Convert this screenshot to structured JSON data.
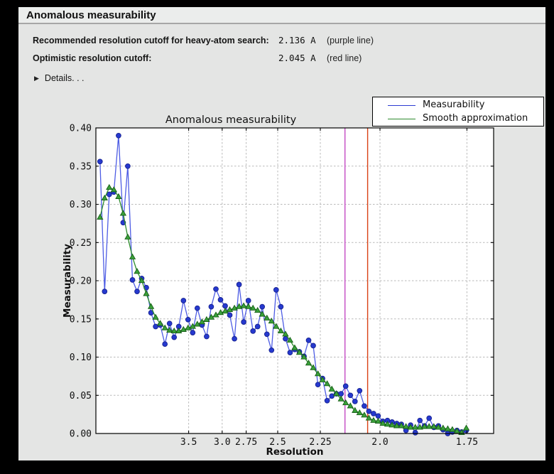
{
  "window": {
    "title": "Anomalous measurability"
  },
  "info_rows": [
    {
      "label": "Recommended resolution cutoff for heavy-atom search:",
      "value": "2.136 A",
      "note": "(purple line)"
    },
    {
      "label": "Optimistic resolution cutoff:",
      "value": "2.045 A",
      "note": "(red line)"
    }
  ],
  "details": {
    "icon": "▶",
    "label": "Details. . ."
  },
  "chart_data": {
    "type": "line",
    "title": "Anomalous measurability",
    "xlabel": "Resolution",
    "ylabel": "Measurability",
    "grid": true,
    "x_axis": {
      "scale": "1_over_d_squared",
      "range_s": [
        0,
        0.35
      ],
      "tick_d_values": [
        3.5,
        3.0,
        2.75,
        2.5,
        2.25,
        2.0,
        1.75
      ],
      "tick_labels": [
        "3.5",
        "3.0",
        "2.75",
        "2.5",
        "2.25",
        "2.0",
        "1.75"
      ]
    },
    "y_axis": {
      "range": [
        0,
        0.4
      ],
      "ticks": [
        0,
        0.05,
        0.1,
        0.15,
        0.2,
        0.25,
        0.3,
        0.35,
        0.4
      ],
      "tick_labels": [
        "0.00",
        "0.05",
        "0.10",
        "0.15",
        "0.20",
        "0.25",
        "0.30",
        "0.35",
        "0.40"
      ]
    },
    "x_bins": {
      "s_start": 0.0036,
      "s_step": 0.00408,
      "count": 80
    },
    "vlines": [
      {
        "name": "recommended-cutoff-line",
        "d": 2.136,
        "color": "#c44bc4",
        "meaning": "purple line"
      },
      {
        "name": "optimistic-cutoff-line",
        "d": 2.045,
        "color": "#d94015",
        "meaning": "red line"
      }
    ],
    "grid_color": "#b9b9b9",
    "legend": {
      "position": "upper right",
      "entries": [
        {
          "label": "Measurability",
          "color": "#2d3bd2"
        },
        {
          "label": "Smooth approximation",
          "color": "#2e8b2e"
        }
      ]
    },
    "series": [
      {
        "name": "Measurability",
        "marker": "circle",
        "line_color": "#4d5ce4",
        "marker_color": "#2639cf",
        "marker_edge": "#17228f",
        "values": [
          0.356,
          0.186,
          0.313,
          0.316,
          0.39,
          0.276,
          0.35,
          0.201,
          0.186,
          0.203,
          0.191,
          0.158,
          0.14,
          0.142,
          0.117,
          0.144,
          0.126,
          0.14,
          0.174,
          0.149,
          0.132,
          0.164,
          0.142,
          0.127,
          0.166,
          0.189,
          0.175,
          0.167,
          0.155,
          0.124,
          0.195,
          0.146,
          0.174,
          0.134,
          0.14,
          0.166,
          0.13,
          0.109,
          0.188,
          0.166,
          0.124,
          0.106,
          0.11,
          0.107,
          0.101,
          0.122,
          0.115,
          0.064,
          0.072,
          0.043,
          0.049,
          0.052,
          0.052,
          0.062,
          0.05,
          0.042,
          0.056,
          0.036,
          0.029,
          0.026,
          0.023,
          0.016,
          0.017,
          0.015,
          0.013,
          0.012,
          0.004,
          0.011,
          0.001,
          0.017,
          0.01,
          0.02,
          0.008,
          0.01,
          0.005,
          0.0,
          0.002,
          0.004,
          0.002,
          0.004
        ]
      },
      {
        "name": "Smooth approximation",
        "marker": "triangle",
        "line_color": "#2c8c2c",
        "marker_color": "#3aa13a",
        "marker_edge": "#175e17",
        "values": [
          0.283,
          0.308,
          0.322,
          0.319,
          0.31,
          0.288,
          0.257,
          0.231,
          0.212,
          0.2,
          0.183,
          0.166,
          0.152,
          0.144,
          0.138,
          0.135,
          0.134,
          0.134,
          0.136,
          0.138,
          0.14,
          0.143,
          0.146,
          0.149,
          0.152,
          0.155,
          0.158,
          0.16,
          0.162,
          0.164,
          0.166,
          0.167,
          0.166,
          0.164,
          0.161,
          0.156,
          0.151,
          0.147,
          0.14,
          0.134,
          0.13,
          0.122,
          0.112,
          0.106,
          0.1,
          0.092,
          0.086,
          0.078,
          0.07,
          0.065,
          0.058,
          0.052,
          0.045,
          0.04,
          0.036,
          0.03,
          0.027,
          0.024,
          0.02,
          0.017,
          0.016,
          0.013,
          0.012,
          0.011,
          0.01,
          0.01,
          0.009,
          0.008,
          0.008,
          0.008,
          0.009,
          0.009,
          0.009,
          0.008,
          0.007,
          0.006,
          0.005,
          0.003,
          0.001,
          0.007
        ]
      }
    ]
  }
}
